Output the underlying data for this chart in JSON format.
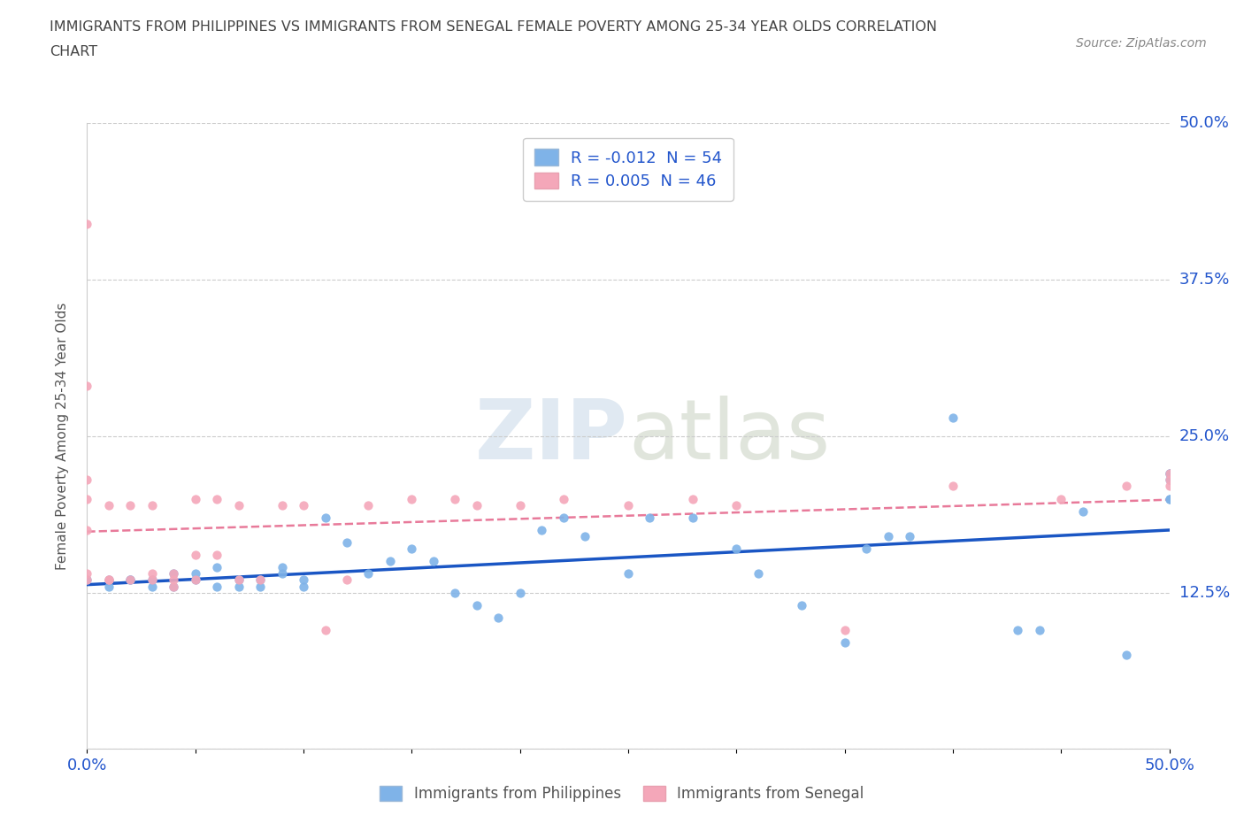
{
  "title_line1": "IMMIGRANTS FROM PHILIPPINES VS IMMIGRANTS FROM SENEGAL FEMALE POVERTY AMONG 25-34 YEAR OLDS CORRELATION",
  "title_line2": "CHART",
  "source": "Source: ZipAtlas.com",
  "ylabel": "Female Poverty Among 25-34 Year Olds",
  "watermark": "ZIPatlas",
  "xlim": [
    0.0,
    0.5
  ],
  "ylim": [
    0.0,
    0.5
  ],
  "yticks": [
    0.0,
    0.125,
    0.25,
    0.375,
    0.5
  ],
  "ytick_labels_right": [
    "",
    "12.5%",
    "25.0%",
    "37.5%",
    "50.0%"
  ],
  "xtick_vals": [
    0.0,
    0.05,
    0.1,
    0.15,
    0.2,
    0.25,
    0.3,
    0.35,
    0.4,
    0.45,
    0.5
  ],
  "xtick_labels": [
    "0.0%",
    "",
    "",
    "",
    "",
    "",
    "",
    "",
    "",
    "",
    "50.0%"
  ],
  "philippines_color": "#7fb3e8",
  "senegal_color": "#f4a7b9",
  "philippines_line_color": "#1a56c4",
  "senegal_line_color": "#e87a9a",
  "R_philippines": -0.012,
  "N_philippines": 54,
  "R_senegal": 0.005,
  "N_senegal": 46,
  "philippines_x": [
    0.0,
    0.01,
    0.01,
    0.02,
    0.02,
    0.03,
    0.03,
    0.04,
    0.04,
    0.05,
    0.05,
    0.06,
    0.06,
    0.07,
    0.07,
    0.08,
    0.08,
    0.09,
    0.09,
    0.1,
    0.1,
    0.11,
    0.12,
    0.13,
    0.14,
    0.15,
    0.16,
    0.17,
    0.18,
    0.19,
    0.2,
    0.21,
    0.22,
    0.23,
    0.25,
    0.26,
    0.28,
    0.3,
    0.31,
    0.33,
    0.35,
    0.36,
    0.37,
    0.38,
    0.4,
    0.43,
    0.44,
    0.46,
    0.48,
    0.5,
    0.5,
    0.5,
    0.5,
    0.5
  ],
  "philippines_y": [
    0.135,
    0.135,
    0.13,
    0.135,
    0.135,
    0.13,
    0.135,
    0.13,
    0.14,
    0.135,
    0.14,
    0.13,
    0.145,
    0.135,
    0.13,
    0.135,
    0.13,
    0.145,
    0.14,
    0.135,
    0.13,
    0.185,
    0.165,
    0.14,
    0.15,
    0.16,
    0.15,
    0.125,
    0.115,
    0.105,
    0.125,
    0.175,
    0.185,
    0.17,
    0.14,
    0.185,
    0.185,
    0.16,
    0.14,
    0.115,
    0.085,
    0.16,
    0.17,
    0.17,
    0.265,
    0.095,
    0.095,
    0.19,
    0.075,
    0.2,
    0.2,
    0.215,
    0.22,
    0.22
  ],
  "senegal_x": [
    0.0,
    0.0,
    0.0,
    0.0,
    0.0,
    0.0,
    0.0,
    0.01,
    0.01,
    0.01,
    0.02,
    0.02,
    0.03,
    0.03,
    0.03,
    0.04,
    0.04,
    0.04,
    0.05,
    0.05,
    0.05,
    0.06,
    0.06,
    0.07,
    0.07,
    0.08,
    0.09,
    0.1,
    0.11,
    0.12,
    0.13,
    0.15,
    0.17,
    0.18,
    0.2,
    0.22,
    0.25,
    0.28,
    0.3,
    0.35,
    0.4,
    0.45,
    0.48,
    0.5,
    0.5,
    0.5
  ],
  "senegal_y": [
    0.135,
    0.14,
    0.175,
    0.2,
    0.215,
    0.29,
    0.42,
    0.135,
    0.195,
    0.135,
    0.135,
    0.195,
    0.14,
    0.135,
    0.195,
    0.135,
    0.14,
    0.13,
    0.2,
    0.135,
    0.155,
    0.2,
    0.155,
    0.195,
    0.135,
    0.135,
    0.195,
    0.195,
    0.095,
    0.135,
    0.195,
    0.2,
    0.2,
    0.195,
    0.195,
    0.2,
    0.195,
    0.2,
    0.195,
    0.095,
    0.21,
    0.2,
    0.21,
    0.21,
    0.215,
    0.22
  ],
  "background_color": "#ffffff",
  "grid_color": "#cccccc",
  "title_color": "#444444",
  "axis_label_color": "#555555",
  "tick_label_color": "#2255cc"
}
